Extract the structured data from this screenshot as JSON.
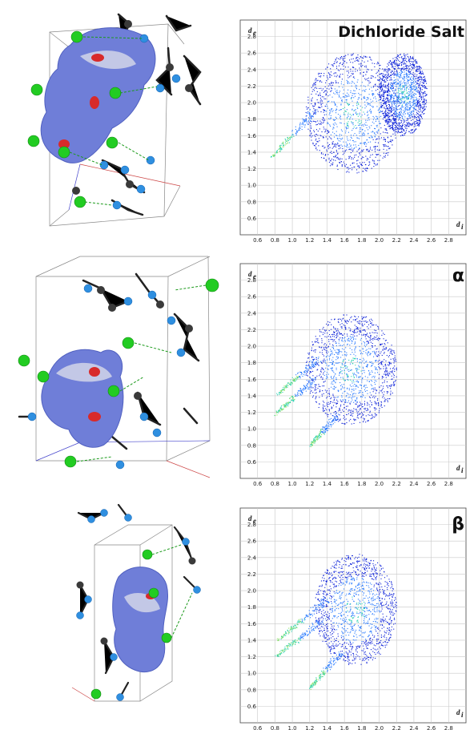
{
  "chart_data": [
    {
      "type": "scatter",
      "title": "Dichloride Salt",
      "xlabel": "d",
      "xlabel_sub": "i",
      "ylabel": "d",
      "ylabel_sub": "e",
      "xlim": [
        0.4,
        3.0
      ],
      "ylim": [
        0.4,
        3.0
      ],
      "xticks": [
        "0.6",
        "0.8",
        "1.0",
        "1.2",
        "1.4",
        "1.6",
        "1.8",
        "2.0",
        "2.2",
        "2.4",
        "2.6",
        "2.8"
      ],
      "yticks": [
        "0.6",
        "0.8",
        "1.0",
        "1.2",
        "1.4",
        "1.6",
        "1.8",
        "2.0",
        "2.2",
        "2.4",
        "2.6",
        "2.8"
      ],
      "grid": true,
      "colors": [
        "#0a1fd8",
        "#2b7bff",
        "#28d0b0",
        "#8ae060"
      ],
      "regions": [
        {
          "x": [
            1.15,
            2.25
          ],
          "y": [
            1.15,
            2.6
          ]
        },
        {
          "x": [
            2.0,
            2.55
          ],
          "y": [
            1.6,
            2.6
          ]
        }
      ],
      "spikes": [
        {
          "from": [
            0.76,
            1.34
          ],
          "to": [
            1.25,
            1.9
          ]
        }
      ]
    },
    {
      "type": "scatter",
      "title": "α",
      "xlabel": "d",
      "xlabel_sub": "i",
      "ylabel": "d",
      "ylabel_sub": "e",
      "xlim": [
        0.4,
        3.0
      ],
      "ylim": [
        0.4,
        3.0
      ],
      "xticks": [
        "0.6",
        "0.8",
        "1.0",
        "1.2",
        "1.4",
        "1.6",
        "1.8",
        "2.0",
        "2.2",
        "2.4",
        "2.6",
        "2.8"
      ],
      "yticks": [
        "0.6",
        "0.8",
        "1.0",
        "1.2",
        "1.4",
        "1.6",
        "1.8",
        "2.0",
        "2.2",
        "2.4",
        "2.6",
        "2.8"
      ],
      "grid": true,
      "colors": [
        "#0a1fd8",
        "#2b7bff",
        "#28d0b0",
        "#8ae060"
      ],
      "regions": [
        {
          "x": [
            1.15,
            2.2
          ],
          "y": [
            1.05,
            2.4
          ]
        }
      ],
      "spikes": [
        {
          "from": [
            0.82,
            1.42
          ],
          "to": [
            1.3,
            1.85
          ]
        },
        {
          "from": [
            0.8,
            1.18
          ],
          "to": [
            1.25,
            1.6
          ]
        },
        {
          "from": [
            1.2,
            0.8
          ],
          "to": [
            1.5,
            1.15
          ]
        }
      ]
    },
    {
      "type": "scatter",
      "title": "β",
      "xlabel": "d",
      "xlabel_sub": "i",
      "ylabel": "d",
      "ylabel_sub": "e",
      "xlim": [
        0.4,
        3.0
      ],
      "ylim": [
        0.4,
        3.0
      ],
      "xticks": [
        "0.6",
        "0.8",
        "1.0",
        "1.2",
        "1.4",
        "1.6",
        "1.8",
        "2.0",
        "2.2",
        "2.4",
        "2.6",
        "2.8"
      ],
      "yticks": [
        "0.6",
        "0.8",
        "1.0",
        "1.2",
        "1.4",
        "1.6",
        "1.8",
        "2.0",
        "2.2",
        "2.4",
        "2.6",
        "2.8"
      ],
      "grid": true,
      "colors": [
        "#0a1fd8",
        "#2b7bff",
        "#28d0b0",
        "#8ae060"
      ],
      "regions": [
        {
          "x": [
            1.25,
            2.2
          ],
          "y": [
            1.1,
            2.45
          ]
        }
      ],
      "spikes": [
        {
          "from": [
            0.82,
            1.4
          ],
          "to": [
            1.4,
            1.9
          ]
        },
        {
          "from": [
            0.8,
            1.2
          ],
          "to": [
            1.35,
            1.65
          ]
        },
        {
          "from": [
            1.2,
            0.82
          ],
          "to": [
            1.55,
            1.25
          ]
        }
      ]
    }
  ],
  "images": {
    "atom_colors": {
      "chlorine": "#22cc22",
      "nitrogen": "#2f8fe0",
      "carbon": "#3a3a3a",
      "hydrogen": "#f4f4f4"
    },
    "surface_colors": {
      "base": "#6f7ed8",
      "light": "#d8dbea",
      "contact": "#d82a2a"
    }
  }
}
